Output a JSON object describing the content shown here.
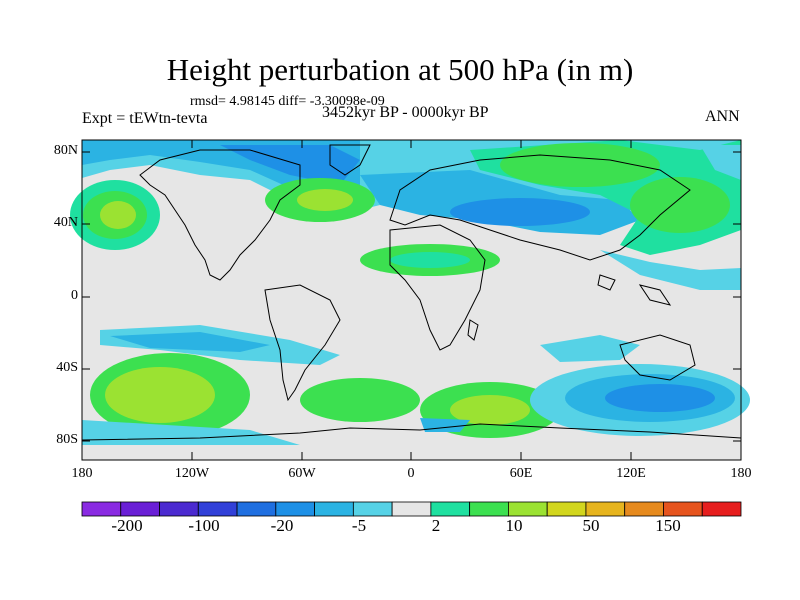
{
  "title": "Height perturbation at 500 hPa (in m)",
  "stats": "rmsd= 4.98145 diff= -3.30098e-09",
  "experiment": "Expt = tEWtn-tevta",
  "period": "3452kyr BP - 0000kyr BP",
  "season": "ANN",
  "lat_labels": [
    "80N",
    "40N",
    "0",
    "40S",
    "80S"
  ],
  "lon_labels": [
    "180",
    "120W",
    "60W",
    "0",
    "60E",
    "120E",
    "180"
  ],
  "colorbar": {
    "labels": [
      "-200",
      "-100",
      "-20",
      "-5",
      "2",
      "10",
      "50",
      "150"
    ],
    "colors": [
      "#8a2be2",
      "#6a1fd6",
      "#4b2ad0",
      "#3140d8",
      "#1f6fe0",
      "#1e90e6",
      "#2bb3e3",
      "#56d2e6",
      "#e6e6e6",
      "#1fe0a0",
      "#3ce050",
      "#9be232",
      "#d2d61e",
      "#e6b41e",
      "#e68a1e",
      "#e6541e",
      "#e61e1e"
    ]
  },
  "legend_colors": {
    "ocean_neutral": "#e6e6e6",
    "light_blue": "#2bb3e3",
    "mid_blue": "#1e90e6",
    "deep_blue": "#1f6fe0",
    "green": "#3ce050",
    "yellow_green": "#9be232",
    "teal": "#1fe0a0"
  }
}
